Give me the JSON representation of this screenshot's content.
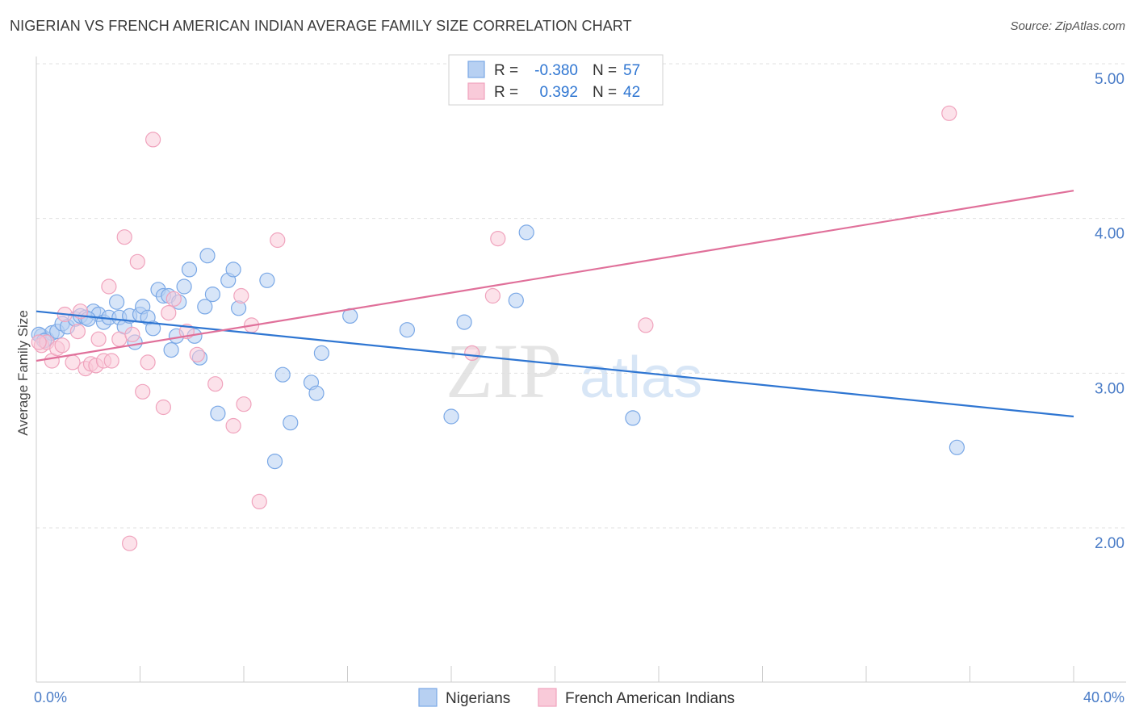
{
  "title": "NIGERIAN VS FRENCH AMERICAN INDIAN AVERAGE FAMILY SIZE CORRELATION CHART",
  "source": "Source: ZipAtlas.com",
  "watermark": {
    "zip": "ZIP",
    "atlas": "atlas"
  },
  "chart_data": {
    "type": "scatter",
    "title": "NIGERIAN VS FRENCH AMERICAN INDIAN AVERAGE FAMILY SIZE CORRELATION CHART",
    "xlabel": "",
    "ylabel": "Average Family Size",
    "xlim": [
      0,
      40
    ],
    "ylim": [
      1.0,
      5.1
    ],
    "x_tick_labels": [
      "0.0%",
      "40.0%"
    ],
    "y_ticks": [
      2.0,
      3.0,
      4.0,
      5.0
    ],
    "y_tick_labels": [
      "2.00",
      "3.00",
      "4.00",
      "5.00"
    ],
    "grid": true,
    "legend_position": "bottom",
    "correlation_box": [
      {
        "r_label": "R =",
        "r_value": "-0.380",
        "n_label": "N =",
        "n_value": "57"
      },
      {
        "r_label": "R =",
        "r_value": "0.392",
        "n_label": "N =",
        "n_value": "42"
      }
    ],
    "series": [
      {
        "name": "Nigerians",
        "color": "#7aa8e6",
        "fill": "#b7d0f2",
        "line_color": "#2f76d2",
        "trend": {
          "x0": 0,
          "y0": 3.4,
          "x1": 40,
          "y1": 2.72
        },
        "points": [
          [
            0.2,
            3.24
          ],
          [
            0.4,
            3.22
          ],
          [
            0.6,
            3.26
          ],
          [
            0.8,
            3.27
          ],
          [
            1.0,
            3.32
          ],
          [
            1.2,
            3.3
          ],
          [
            1.5,
            3.35
          ],
          [
            1.7,
            3.37
          ],
          [
            1.9,
            3.36
          ],
          [
            2.2,
            3.4
          ],
          [
            2.4,
            3.38
          ],
          [
            2.6,
            3.33
          ],
          [
            2.8,
            3.36
          ],
          [
            3.1,
            3.46
          ],
          [
            3.2,
            3.36
          ],
          [
            3.4,
            3.3
          ],
          [
            3.6,
            3.37
          ],
          [
            3.8,
            3.2
          ],
          [
            4.0,
            3.38
          ],
          [
            4.1,
            3.43
          ],
          [
            4.3,
            3.36
          ],
          [
            4.5,
            3.29
          ],
          [
            4.7,
            3.54
          ],
          [
            4.9,
            3.5
          ],
          [
            5.1,
            3.5
          ],
          [
            5.2,
            3.15
          ],
          [
            5.4,
            3.24
          ],
          [
            5.5,
            3.46
          ],
          [
            5.7,
            3.56
          ],
          [
            5.9,
            3.67
          ],
          [
            6.1,
            3.24
          ],
          [
            6.3,
            3.1
          ],
          [
            6.5,
            3.43
          ],
          [
            6.6,
            3.76
          ],
          [
            6.8,
            3.51
          ],
          [
            7.0,
            2.74
          ],
          [
            7.4,
            3.6
          ],
          [
            7.6,
            3.67
          ],
          [
            7.8,
            3.42
          ],
          [
            8.9,
            3.6
          ],
          [
            9.2,
            2.43
          ],
          [
            9.5,
            2.99
          ],
          [
            9.8,
            2.68
          ],
          [
            10.6,
            2.94
          ],
          [
            10.8,
            2.87
          ],
          [
            11.0,
            3.13
          ],
          [
            12.1,
            3.37
          ],
          [
            14.3,
            3.28
          ],
          [
            16.0,
            2.72
          ],
          [
            16.5,
            3.33
          ],
          [
            18.5,
            3.47
          ],
          [
            18.9,
            3.91
          ],
          [
            23.0,
            2.71
          ],
          [
            35.5,
            2.52
          ],
          [
            0.1,
            3.25
          ],
          [
            0.3,
            3.21
          ],
          [
            2.0,
            3.35
          ]
        ]
      },
      {
        "name": "French American Indians",
        "color": "#f0a3bd",
        "fill": "#f9cad9",
        "line_color": "#e0709a",
        "trend": {
          "x0": 0,
          "y0": 3.08,
          "x1": 40,
          "y1": 4.18
        },
        "points": [
          [
            0.2,
            3.18
          ],
          [
            0.4,
            3.2
          ],
          [
            0.6,
            3.08
          ],
          [
            0.8,
            3.16
          ],
          [
            1.0,
            3.18
          ],
          [
            1.1,
            3.38
          ],
          [
            1.4,
            3.07
          ],
          [
            1.6,
            3.27
          ],
          [
            1.7,
            3.4
          ],
          [
            1.9,
            3.03
          ],
          [
            2.1,
            3.06
          ],
          [
            2.3,
            3.05
          ],
          [
            2.4,
            3.22
          ],
          [
            2.6,
            3.08
          ],
          [
            2.8,
            3.56
          ],
          [
            2.9,
            3.08
          ],
          [
            3.2,
            3.22
          ],
          [
            3.4,
            3.88
          ],
          [
            3.6,
            1.9
          ],
          [
            3.7,
            3.25
          ],
          [
            3.9,
            3.72
          ],
          [
            4.1,
            2.88
          ],
          [
            4.3,
            3.07
          ],
          [
            4.5,
            4.51
          ],
          [
            4.9,
            2.78
          ],
          [
            5.1,
            3.39
          ],
          [
            5.3,
            3.48
          ],
          [
            5.8,
            3.27
          ],
          [
            6.2,
            3.12
          ],
          [
            6.9,
            2.93
          ],
          [
            7.6,
            2.66
          ],
          [
            7.9,
            3.5
          ],
          [
            8.0,
            2.8
          ],
          [
            8.3,
            3.31
          ],
          [
            8.6,
            2.17
          ],
          [
            9.3,
            3.86
          ],
          [
            16.8,
            3.13
          ],
          [
            17.6,
            3.5
          ],
          [
            17.8,
            3.87
          ],
          [
            23.5,
            3.31
          ],
          [
            35.2,
            4.68
          ],
          [
            0.1,
            3.2
          ]
        ]
      }
    ]
  }
}
